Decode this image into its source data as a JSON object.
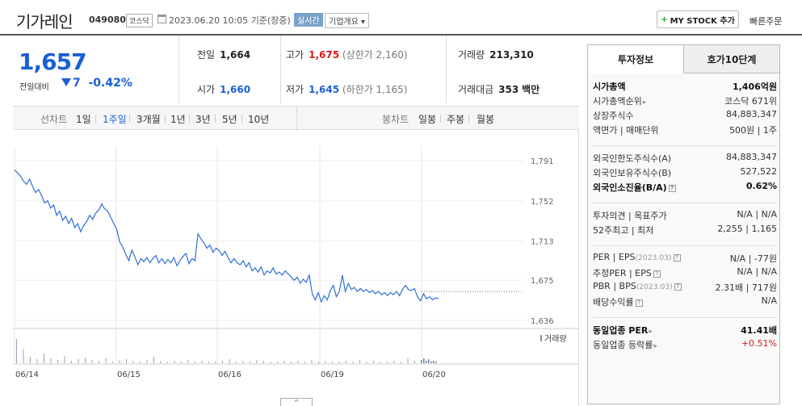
{
  "header": {
    "name": "기가레인",
    "code": "049080",
    "market_badge": "코스닥",
    "datetime": "2023.06.20 10:05",
    "basis": "기준(장중)",
    "live_badge": "실시간",
    "company_info": "기업개요",
    "mystock_label": "MY STOCK 추가",
    "quick_order": "빠른주문"
  },
  "price": {
    "current": "1,657",
    "change_label": "전일대비",
    "change_amount": "7",
    "change_pct": "-0.42%"
  },
  "quote": {
    "prev_label": "전일",
    "prev_value": "1,664",
    "high_label": "고가",
    "high_value": "1,675",
    "upper_limit_label": "(상한가",
    "upper_limit_value": "2,160)",
    "volume_label": "거래량",
    "volume_value": "213,310",
    "open_label": "시가",
    "open_value": "1,660",
    "low_label": "저가",
    "low_value": "1,645",
    "lower_limit_label": "(하한가",
    "lower_limit_value": "1,165)",
    "amount_label": "거래대금",
    "amount_value": "353",
    "amount_unit": "백만"
  },
  "chart_tabs": {
    "line_label": "선차트",
    "periods": [
      "1일",
      "1주일",
      "3개월",
      "1년",
      "3년",
      "5년",
      "10년"
    ],
    "active_period": "1주일",
    "candle_label": "봉차트",
    "candles": [
      "일봉",
      "주봉",
      "월봉"
    ]
  },
  "chart_data": {
    "type": "line",
    "x_tick_labels": [
      "06/14",
      "06/15",
      "06/16",
      "06/19",
      "06/20"
    ],
    "y_tick_labels": [
      "1,791",
      "1,752",
      "1,713",
      "1,675",
      "1,636"
    ],
    "ylim": [
      1636,
      1791
    ],
    "volume_legend": "거래량",
    "reference_line": 1664,
    "series": [
      {
        "values": [
          1782,
          1779,
          1776,
          1771,
          1768,
          1773,
          1766,
          1760,
          1763,
          1757,
          1750,
          1752,
          1745,
          1748,
          1738,
          1742,
          1733,
          1737,
          1730,
          1735,
          1726,
          1730,
          1722,
          1728,
          1732,
          1738,
          1734,
          1740,
          1743,
          1749,
          1744,
          1742,
          1736,
          1730,
          1724,
          1712,
          1707,
          1700,
          1694,
          1704,
          1698,
          1690,
          1696,
          1693,
          1697,
          1692,
          1696,
          1699,
          1692,
          1696,
          1691,
          1695,
          1692,
          1697,
          1689,
          1694,
          1698,
          1701,
          1691,
          1696,
          1694,
          1720,
          1715,
          1711,
          1706,
          1709,
          1702,
          1706,
          1704,
          1699,
          1703,
          1697,
          1692,
          1696,
          1692,
          1690,
          1694,
          1688,
          1692,
          1684,
          1687,
          1683,
          1688,
          1680,
          1684,
          1682,
          1687,
          1681,
          1683,
          1680,
          1684,
          1681,
          1678,
          1675,
          1678,
          1672,
          1676,
          1673,
          1680,
          1662,
          1656,
          1663,
          1654,
          1660,
          1656,
          1665,
          1670,
          1659,
          1664,
          1680,
          1664,
          1672,
          1666,
          1668,
          1664,
          1667,
          1664,
          1666,
          1663,
          1665,
          1662,
          1664,
          1661,
          1663,
          1660,
          1663,
          1661,
          1664,
          1660,
          1666,
          1670,
          1666,
          1665,
          1667,
          1659,
          1655,
          1662,
          1657,
          1659,
          1656,
          1658,
          1657
        ]
      }
    ]
  },
  "sidebar": {
    "tab_invest": "투자정보",
    "tab_hoga": "호가10단계",
    "rows": [
      {
        "k": "시가총액",
        "v": "1,406억원",
        "bold": true
      },
      {
        "k": "시가총액순위",
        "v": "코스닥 671위",
        "arrow": true
      },
      {
        "k": "상장주식수",
        "v": "84,883,347"
      },
      {
        "k": "액면가 | 매매단위",
        "v": "500원 | 1주"
      },
      {
        "k": "외국인한도주식수(A)",
        "v": "84,883,347"
      },
      {
        "k": "외국인보유주식수(B)",
        "v": "527,522"
      },
      {
        "k": "외국인소진율(B/A)",
        "v": "0.62%",
        "bold": true,
        "qicon": true
      },
      {
        "k": "투자의견 | 목표주가",
        "v": "N/A | N/A"
      },
      {
        "k": "52주최고 | 최저",
        "v": "2,255 | 1,165"
      },
      {
        "k": "PER | EPS",
        "kdate": "(2023.03)",
        "v": "N/A | -77원",
        "qicon": true
      },
      {
        "k": "추정PER | EPS",
        "v": "N/A | N/A",
        "qicon": true
      },
      {
        "k": "PBR | BPS",
        "kdate": "(2023.03)",
        "v": "2.31배 | 717원",
        "qicon": true
      },
      {
        "k": "배당수익률",
        "v": "N/A",
        "qicon": true
      },
      {
        "k": "동일업종 PER",
        "v": "41.41배",
        "bold": true,
        "arrow": true
      },
      {
        "k": "동일업종 등락률",
        "v": "+0.51%",
        "arrow": true,
        "red": true
      }
    ]
  },
  "colors": {
    "up": "#d61b1b",
    "down": "#1b5fd6",
    "line": "#2f6fd0"
  }
}
